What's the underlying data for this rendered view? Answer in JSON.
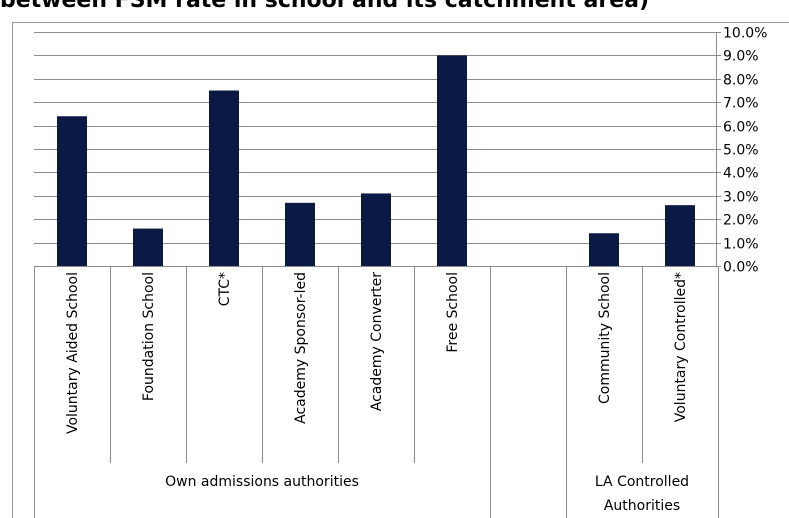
{
  "header": {
    "title": "between FSM rate in school and its catchment area)"
  },
  "chart_data": {
    "type": "bar",
    "categories": [
      "Voluntary Aided School",
      "Foundation School",
      "CTC*",
      "Academy Sponsor-led",
      "Academy Converter",
      "Free School",
      "",
      "Community School",
      "Voluntary Controlled*"
    ],
    "values": [
      6.4,
      1.6,
      7.5,
      2.7,
      3.1,
      9.0,
      null,
      1.4,
      2.6
    ],
    "groups": [
      {
        "label": "Own admissions authorities",
        "categories": [
          "Voluntary Aided School",
          "Foundation School",
          "CTC*",
          "Academy Sponsor-led",
          "Academy Converter",
          "Free School"
        ]
      },
      {
        "label": "LA Controlled Authorities",
        "categories": [
          "Community School",
          "Voluntary Controlled*"
        ]
      }
    ],
    "y_ticks": [
      "0.0%",
      "1.0%",
      "2.0%",
      "3.0%",
      "4.0%",
      "5.0%",
      "6.0%",
      "7.0%",
      "8.0%",
      "9.0%",
      "10.0%"
    ],
    "ylim": [
      0,
      10
    ],
    "y_axis_side": "right",
    "grid": true,
    "legend": "none",
    "bar_color": "#0a1a45",
    "grid_color": "#8c8c8c",
    "axis_color": "#8c8c8c"
  }
}
